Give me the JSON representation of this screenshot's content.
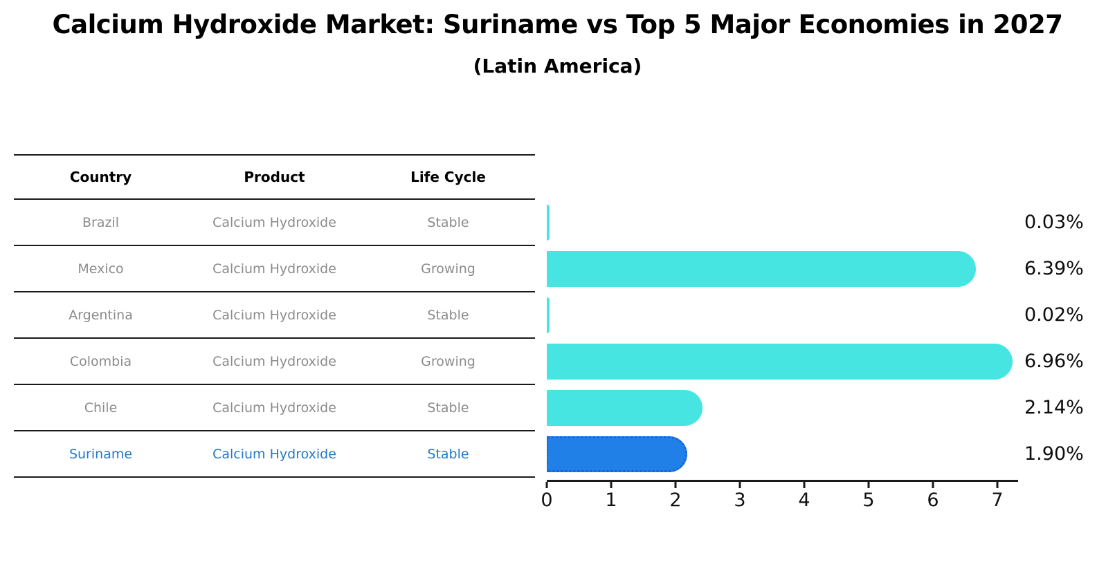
{
  "title": "Calcium Hydroxide Market: Suriname vs Top 5 Major Economies in 2027",
  "subtitle": "(Latin America)",
  "table": {
    "headers": [
      "Country",
      "Product",
      "Life Cycle"
    ],
    "rows": [
      {
        "country": "Brazil",
        "product": "Calcium Hydroxide",
        "life_cycle": "Stable"
      },
      {
        "country": "Mexico",
        "product": "Calcium Hydroxide",
        "life_cycle": "Growing"
      },
      {
        "country": "Argentina",
        "product": "Calcium Hydroxide",
        "life_cycle": "Stable"
      },
      {
        "country": "Colombia",
        "product": "Calcium Hydroxide",
        "life_cycle": "Growing"
      },
      {
        "country": "Chile",
        "product": "Calcium Hydroxide",
        "life_cycle": "Stable"
      },
      {
        "country": "Suriname",
        "product": "Calcium Hydroxide",
        "life_cycle": "Stable"
      }
    ],
    "highlight_row_index": 5
  },
  "chart_data": {
    "type": "bar",
    "orientation": "horizontal",
    "title": "Calcium Hydroxide Market: Suriname vs Top 5 Major Economies in 2027",
    "subtitle": "(Latin America)",
    "categories": [
      "Brazil",
      "Mexico",
      "Argentina",
      "Colombia",
      "Chile",
      "Suriname"
    ],
    "values": [
      0.03,
      6.39,
      0.02,
      6.96,
      2.14,
      1.9
    ],
    "value_labels": [
      "0.03%",
      "6.39%",
      "0.02%",
      "6.96%",
      "2.14%",
      "1.90%"
    ],
    "x_ticks": [
      "0",
      "1",
      "2",
      "3",
      "4",
      "5",
      "6",
      "7"
    ],
    "xlim": [
      0,
      7.3
    ],
    "grid": false,
    "legend": "none",
    "highlight_index": 5,
    "colors": {
      "bar": "#47e5e2",
      "highlight_bar": "#2080e8",
      "highlight_border": "#1565d8",
      "highlight_text": "#2478c8",
      "table_text": "#8b8b8b",
      "axis": "#1a1a1a"
    }
  }
}
